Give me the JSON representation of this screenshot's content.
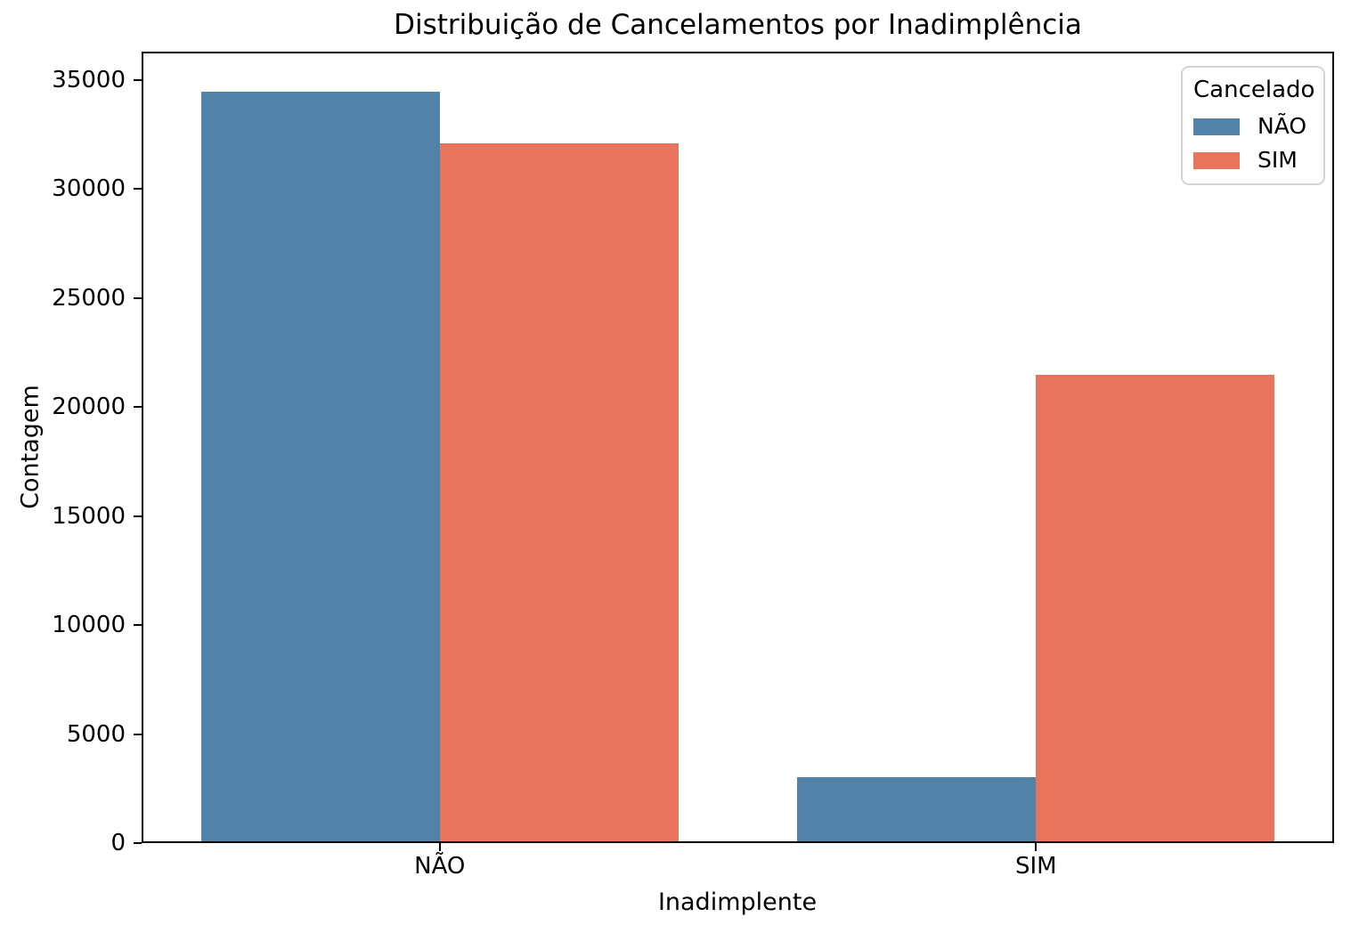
{
  "chart_data": {
    "type": "bar",
    "title": "Distribuição de Cancelamentos por Inadimplência",
    "xlabel": "Inadimplente",
    "ylabel": "Contagem",
    "categories": [
      "NÃO",
      "SIM"
    ],
    "series": [
      {
        "name": "NÃO",
        "color": "#5382A8",
        "values": [
          34400,
          2950
        ]
      },
      {
        "name": "SIM",
        "color": "#E8745E",
        "values": [
          32000,
          21400
        ]
      }
    ],
    "ylim": [
      0,
      36300
    ],
    "yticks": [
      0,
      5000,
      10000,
      15000,
      20000,
      25000,
      30000,
      35000
    ],
    "grid": false,
    "legend_title": "Cancelado",
    "legend_position": "upper right",
    "legend_entries": [
      {
        "label": "NÃO",
        "color": "#5382A8"
      },
      {
        "label": "SIM",
        "color": "#E8745E"
      }
    ]
  }
}
